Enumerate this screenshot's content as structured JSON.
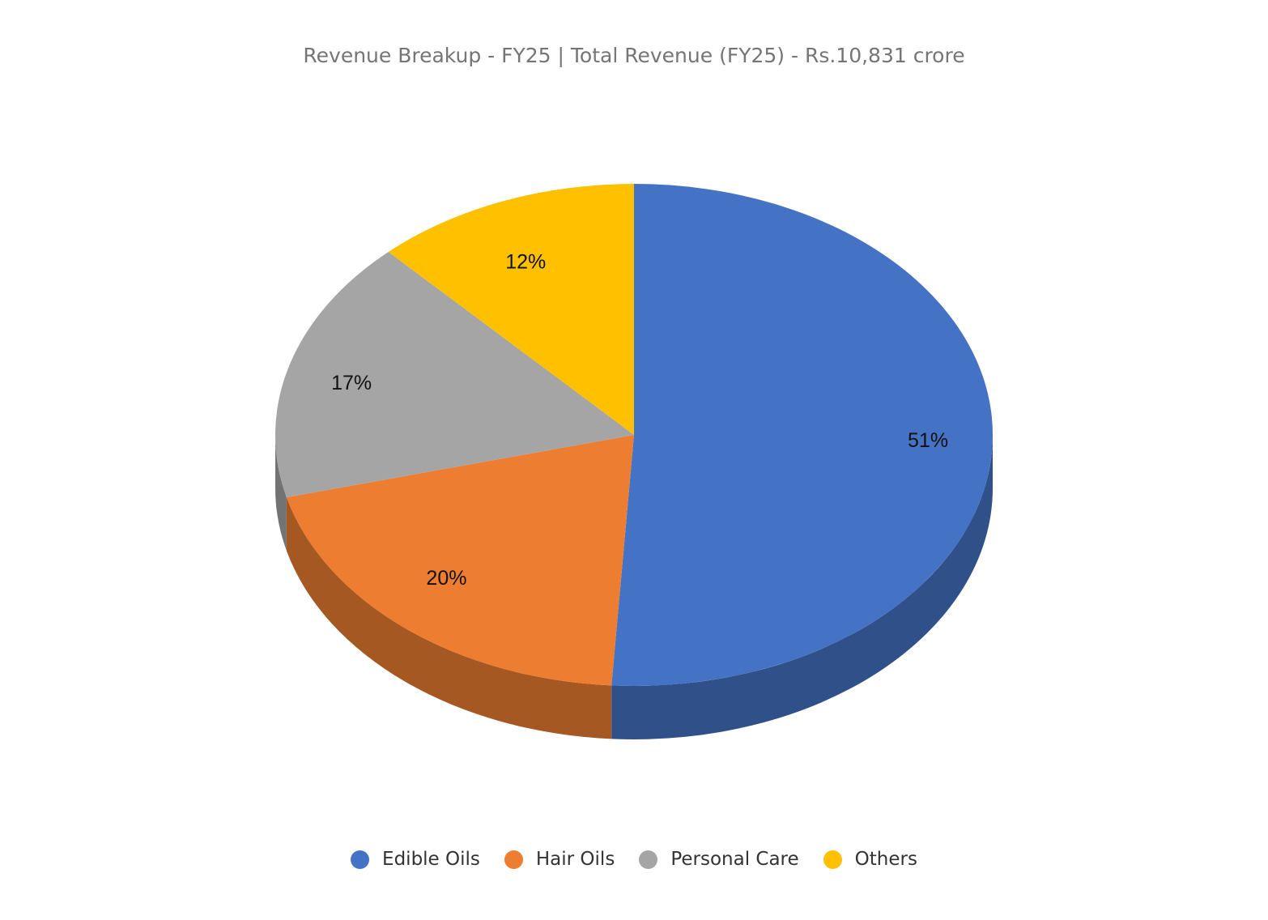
{
  "chart_data": {
    "type": "pie",
    "title": "Revenue Breakup - FY25 | Total Revenue (FY25) - Rs.10,831 crore",
    "categories": [
      "Edible Oils",
      "Hair Oils",
      "Personal Care",
      "Others"
    ],
    "values": [
      51,
      20,
      17,
      12
    ],
    "data_labels": [
      "51%",
      "20%",
      "17%",
      "12%"
    ],
    "unit": "%",
    "colors": [
      "#4472C4",
      "#ED7D31",
      "#A5A5A5",
      "#FFC000"
    ],
    "style": "3d",
    "legend": "bottom"
  }
}
